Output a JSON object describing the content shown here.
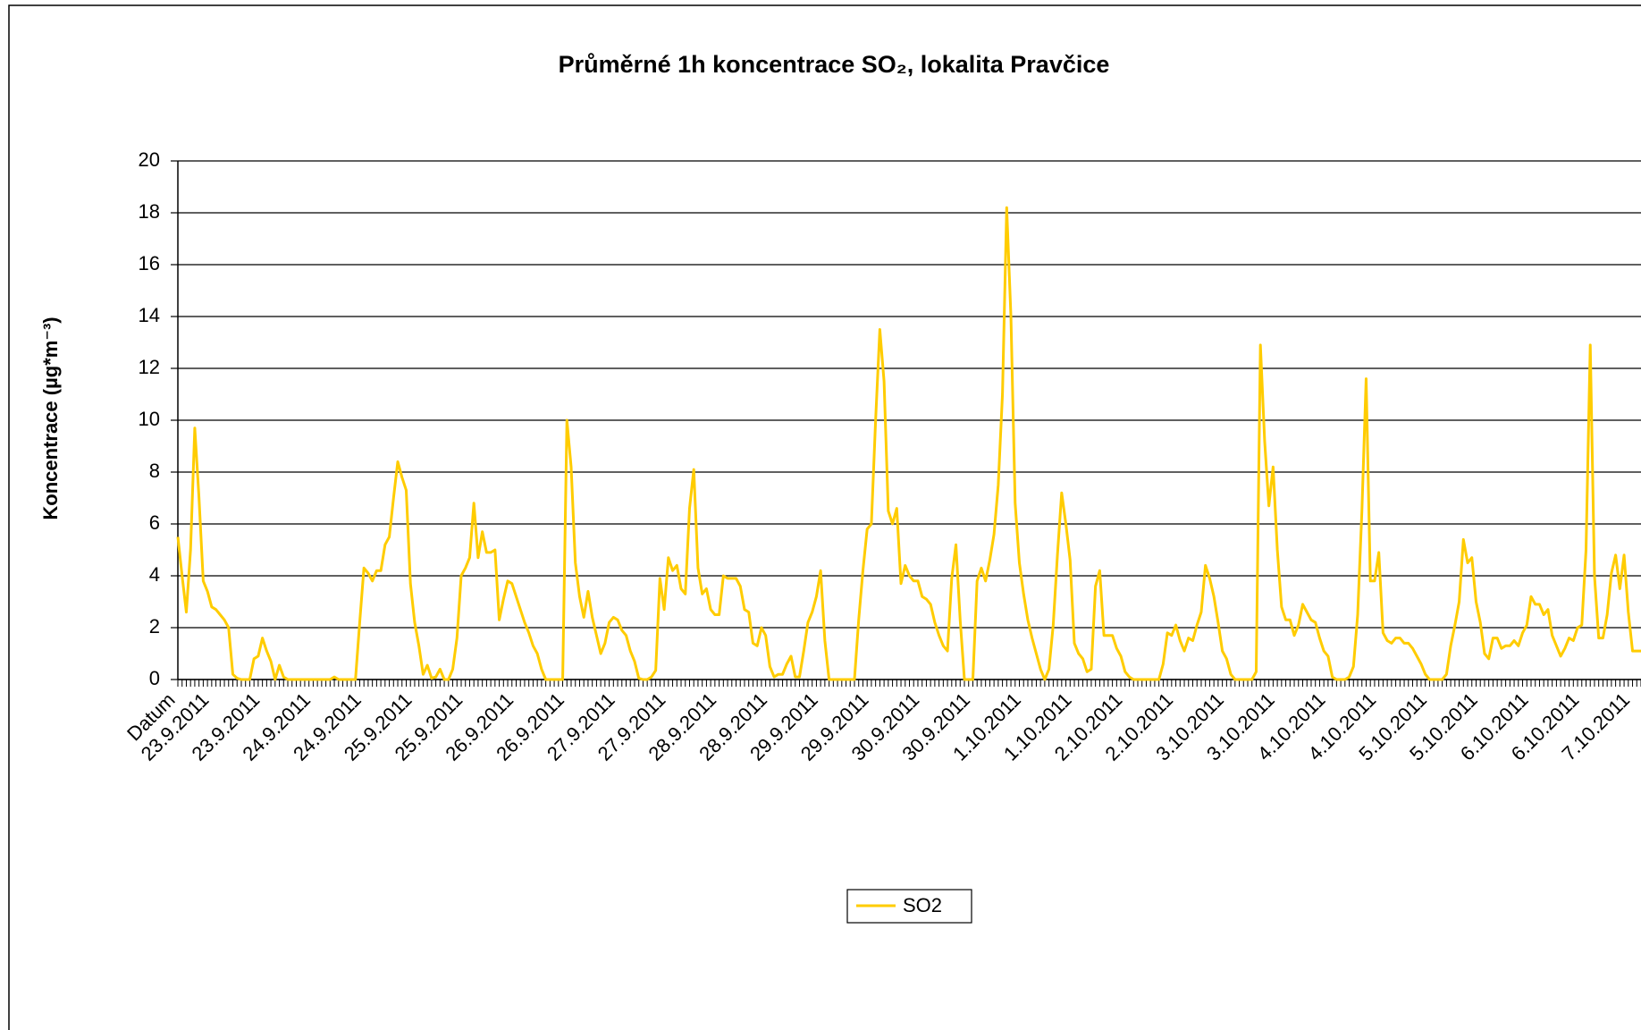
{
  "chart_data": {
    "type": "line",
    "title": "Průměrné 1h koncentrace SO₂, lokalita Pravčice",
    "y_label": "Koncentrace (µg*m⁻³)",
    "categories": [
      "Datum",
      null,
      null,
      null,
      null,
      null,
      null,
      null,
      "23.9.2011",
      null,
      null,
      null,
      null,
      null,
      null,
      null,
      null,
      null,
      null,
      null,
      "23.9.2011",
      null,
      null,
      null,
      null,
      null,
      null,
      null,
      null,
      null,
      null,
      null,
      "24.9.2011",
      null,
      null,
      null,
      null,
      null,
      null,
      null,
      null,
      null,
      null,
      null,
      "24.9.2011",
      null,
      null,
      null,
      null,
      null,
      null,
      null,
      null,
      null,
      null,
      null,
      "25.9.2011",
      null,
      null,
      null,
      null,
      null,
      null,
      null,
      null,
      null,
      null,
      null,
      "25.9.2011",
      null,
      null,
      null,
      null,
      null,
      null,
      null,
      null,
      null,
      null,
      null,
      "26.9.2011",
      null,
      null,
      null,
      null,
      null,
      null,
      null,
      null,
      null,
      null,
      null,
      "26.9.2011",
      null,
      null,
      null,
      null,
      null,
      null,
      null,
      null,
      null,
      null,
      null,
      "27.9.2011",
      null,
      null,
      null,
      null,
      null,
      null,
      null,
      null,
      null,
      null,
      null,
      "27.9.2011",
      null,
      null,
      null,
      null,
      null,
      null,
      null,
      null,
      null,
      null,
      null,
      "28.9.2011",
      null,
      null,
      null,
      null,
      null,
      null,
      null,
      null,
      null,
      null,
      null,
      "28.9.2011",
      null,
      null,
      null,
      null,
      null,
      null,
      null,
      null,
      null,
      null,
      null,
      "29.9.2011",
      null,
      null,
      null,
      null,
      null,
      null,
      null,
      null,
      null,
      null,
      null,
      "29.9.2011",
      null,
      null,
      null,
      null,
      null,
      null,
      null,
      null,
      null,
      null,
      null,
      "30.9.2011",
      null,
      null,
      null,
      null,
      null,
      null,
      null,
      null,
      null,
      null,
      null,
      "30.9.2011",
      null,
      null,
      null,
      null,
      null,
      null,
      null,
      null,
      null,
      null,
      null,
      "1.10.2011",
      null,
      null,
      null,
      null,
      null,
      null,
      null,
      null,
      null,
      null,
      null,
      "1.10.2011",
      null,
      null,
      null,
      null,
      null,
      null,
      null,
      null,
      null,
      null,
      null,
      "2.10.2011",
      null,
      null,
      null,
      null,
      null,
      null,
      null,
      null,
      null,
      null,
      null,
      "2.10.2011",
      null,
      null,
      null,
      null,
      null,
      null,
      null,
      null,
      null,
      null,
      null,
      "3.10.2011",
      null,
      null,
      null,
      null,
      null,
      null,
      null,
      null,
      null,
      null,
      null,
      "3.10.2011",
      null,
      null,
      null,
      null,
      null,
      null,
      null,
      null,
      null,
      null,
      null,
      "4.10.2011",
      null,
      null,
      null,
      null,
      null,
      null,
      null,
      null,
      null,
      null,
      null,
      "4.10.2011",
      null,
      null,
      null,
      null,
      null,
      null,
      null,
      null,
      null,
      null,
      null,
      "5.10.2011",
      null,
      null,
      null,
      null,
      null,
      null,
      null,
      null,
      null,
      null,
      null,
      "5.10.2011",
      null,
      null,
      null,
      null,
      null,
      null,
      null,
      null,
      null,
      null,
      null,
      "6.10.2011",
      null,
      null,
      null,
      null,
      null,
      null,
      null,
      null,
      null,
      null,
      null,
      "6.10.2011",
      null,
      null,
      null,
      null,
      null,
      null,
      null,
      null,
      null,
      null,
      null,
      "7.10.2011",
      null,
      null
    ],
    "series": [
      {
        "name": "SO2",
        "color": "#ffcc00",
        "values": [
          5.5,
          4,
          2.6,
          5,
          9.7,
          7,
          3.8,
          3.4,
          2.8,
          2.7,
          2.5,
          2.3,
          2.0,
          0.2,
          0.05,
          0,
          0,
          0,
          0.8,
          0.9,
          1.6,
          1.1,
          0.7,
          0,
          0.55,
          0.1,
          0,
          0,
          0,
          0,
          0,
          0,
          0,
          0,
          0,
          0,
          0,
          0.1,
          0,
          0,
          0,
          0,
          0,
          2.2,
          4.3,
          4.1,
          3.8,
          4.2,
          4.2,
          5.2,
          5.5,
          7,
          8.4,
          7.8,
          7.3,
          3.7,
          2.2,
          1.3,
          0.2,
          0.55,
          0.05,
          0.1,
          0.4,
          0,
          0,
          0.4,
          1.6,
          4,
          4.3,
          4.7,
          6.8,
          4.7,
          5.7,
          4.9,
          4.9,
          5,
          2.3,
          3.1,
          3.8,
          3.7,
          3.2,
          2.7,
          2.2,
          1.8,
          1.3,
          1,
          0.4,
          0,
          0,
          0,
          0,
          0,
          10,
          8.2,
          4.5,
          3.2,
          2.4,
          3.4,
          2.4,
          1.7,
          1,
          1.4,
          2.2,
          2.4,
          2.3,
          1.9,
          1.7,
          1.1,
          0.7,
          0.05,
          0,
          0,
          0.1,
          0.35,
          3.9,
          2.7,
          4.7,
          4.2,
          4.4,
          3.5,
          3.3,
          6.6,
          8.1,
          4.3,
          3.3,
          3.5,
          2.7,
          2.5,
          2.5,
          4.0,
          3.9,
          3.9,
          3.9,
          3.6,
          2.7,
          2.6,
          1.4,
          1.3,
          2.0,
          1.7,
          0.5,
          0.1,
          0.2,
          0.2,
          0.6,
          0.9,
          0.1,
          0.1,
          1.1,
          2.2,
          2.6,
          3.2,
          4.2,
          1.5,
          0,
          0,
          0,
          0,
          0,
          0,
          0,
          2.3,
          4.2,
          5.8,
          6,
          10,
          13.5,
          11.5,
          6.5,
          6.0,
          6.6,
          3.7,
          4.4,
          4.0,
          3.8,
          3.8,
          3.2,
          3.1,
          2.9,
          2.2,
          1.7,
          1.3,
          1.1,
          3.9,
          5.2,
          2.3,
          0,
          0,
          0,
          3.8,
          4.3,
          3.8,
          4.6,
          5.6,
          7.5,
          11,
          18.2,
          14,
          6.8,
          4.5,
          3.3,
          2.3,
          1.6,
          1,
          0.4,
          0,
          0.4,
          2.1,
          4.8,
          7.2,
          6,
          4.6,
          1.4,
          1,
          0.8,
          0.3,
          0.4,
          3.6,
          4.2,
          1.7,
          1.7,
          1.7,
          1.2,
          0.9,
          0.3,
          0.1,
          0,
          0,
          0,
          0,
          0,
          0,
          0,
          0.6,
          1.8,
          1.7,
          2.1,
          1.5,
          1.1,
          1.6,
          1.5,
          2.1,
          2.6,
          4.4,
          3.9,
          3.2,
          2.2,
          1.1,
          0.8,
          0.2,
          0,
          0,
          0,
          0,
          0,
          0.3,
          12.9,
          9.2,
          6.7,
          8.2,
          5,
          2.8,
          2.3,
          2.3,
          1.7,
          2.1,
          2.9,
          2.6,
          2.3,
          2.2,
          1.6,
          1.1,
          0.9,
          0.1,
          0,
          0,
          0,
          0.1,
          0.5,
          2.5,
          6.5,
          11.6,
          3.8,
          3.8,
          4.9,
          1.8,
          1.5,
          1.4,
          1.6,
          1.6,
          1.4,
          1.4,
          1.2,
          0.9,
          0.6,
          0.2,
          0,
          0,
          0,
          0,
          0.2,
          1.3,
          2.1,
          3,
          5.4,
          4.5,
          4.7,
          3,
          2.2,
          1,
          0.8,
          1.6,
          1.6,
          1.2,
          1.3,
          1.3,
          1.5,
          1.3,
          1.8,
          2.1,
          3.2,
          2.9,
          2.9,
          2.5,
          2.7,
          1.7,
          1.3,
          0.9,
          1.2,
          1.6,
          1.5,
          2,
          2.1,
          5,
          12.9,
          4,
          1.6,
          1.6,
          2.5,
          4.1,
          4.8,
          3.5,
          4.8,
          2.6,
          1.1,
          1.1,
          1.1
        ]
      }
    ],
    "ylim": [
      0,
      20
    ],
    "yticks": [
      0,
      2,
      4,
      6,
      8,
      10,
      12,
      14,
      16,
      18,
      20
    ],
    "grid": true,
    "legend": "bottom"
  }
}
